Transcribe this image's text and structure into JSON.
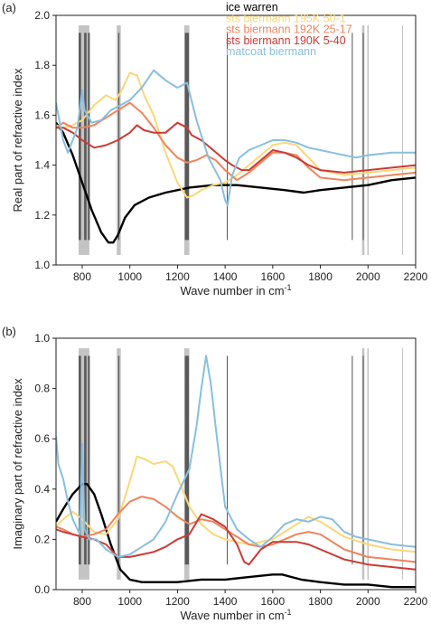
{
  "chart_data": [
    {
      "type": "line",
      "panel_label": "(a)",
      "xlabel": "Wave number in cm",
      "xlabel_sup": "-1",
      "ylabel": "Real part of refractive index",
      "xlim": [
        690,
        2200
      ],
      "ylim": [
        1.0,
        2.0
      ],
      "xticks": [
        800,
        1000,
        1200,
        1400,
        1600,
        1800,
        2000,
        2200
      ],
      "yticks": [
        1.0,
        1.2,
        1.4,
        1.6,
        1.8,
        2.0
      ],
      "ytick_labels": [
        "1.0",
        "1.2",
        "1.4",
        "1.6",
        "1.8",
        "2.0"
      ],
      "legend_position": "top-right",
      "series": [
        {
          "name": "ice warren",
          "color": "#000000",
          "x": [
            690,
            720,
            760,
            800,
            840,
            880,
            910,
            930,
            950,
            980,
            1020,
            1080,
            1150,
            1250,
            1350,
            1450,
            1550,
            1650,
            1730,
            1800,
            1900,
            2000,
            2100,
            2200
          ],
          "y": [
            1.57,
            1.53,
            1.44,
            1.33,
            1.22,
            1.13,
            1.09,
            1.09,
            1.12,
            1.19,
            1.24,
            1.27,
            1.29,
            1.31,
            1.32,
            1.32,
            1.31,
            1.3,
            1.29,
            1.3,
            1.31,
            1.32,
            1.34,
            1.35
          ]
        },
        {
          "name": "sts biermann 195K 50-1",
          "color": "#fbd77a",
          "x": [
            690,
            720,
            760,
            800,
            850,
            900,
            940,
            960,
            1000,
            1030,
            1060,
            1100,
            1150,
            1200,
            1240,
            1270,
            1300,
            1350,
            1400,
            1450,
            1500,
            1550,
            1600,
            1650,
            1700,
            1750,
            1800,
            1900,
            2000,
            2100,
            2200
          ],
          "y": [
            1.56,
            1.55,
            1.56,
            1.58,
            1.64,
            1.68,
            1.66,
            1.69,
            1.77,
            1.76,
            1.68,
            1.6,
            1.45,
            1.33,
            1.27,
            1.28,
            1.3,
            1.32,
            1.33,
            1.36,
            1.4,
            1.44,
            1.48,
            1.49,
            1.48,
            1.43,
            1.38,
            1.36,
            1.37,
            1.38,
            1.39
          ]
        },
        {
          "name": "sts biermann 192K 25-17",
          "color": "#f0845c",
          "x": [
            690,
            720,
            760,
            800,
            850,
            900,
            950,
            1000,
            1050,
            1100,
            1150,
            1200,
            1240,
            1280,
            1320,
            1360,
            1400,
            1450,
            1500,
            1550,
            1600,
            1650,
            1700,
            1750,
            1800,
            1900,
            2000,
            2100,
            2200
          ],
          "y": [
            1.55,
            1.57,
            1.55,
            1.55,
            1.56,
            1.59,
            1.62,
            1.65,
            1.61,
            1.55,
            1.48,
            1.43,
            1.41,
            1.42,
            1.44,
            1.42,
            1.38,
            1.34,
            1.37,
            1.41,
            1.45,
            1.45,
            1.44,
            1.39,
            1.35,
            1.34,
            1.35,
            1.36,
            1.37
          ]
        },
        {
          "name": "sts biermann 190K 5-40",
          "color": "#cc3a34",
          "x": [
            690,
            720,
            760,
            800,
            850,
            900,
            950,
            1000,
            1030,
            1060,
            1100,
            1150,
            1200,
            1240,
            1260,
            1300,
            1350,
            1400,
            1430,
            1470,
            1500,
            1550,
            1600,
            1650,
            1700,
            1750,
            1800,
            1900,
            2000,
            2100,
            2200
          ],
          "y": [
            1.55,
            1.55,
            1.53,
            1.5,
            1.47,
            1.48,
            1.5,
            1.53,
            1.56,
            1.54,
            1.53,
            1.53,
            1.57,
            1.55,
            1.52,
            1.5,
            1.46,
            1.42,
            1.4,
            1.38,
            1.38,
            1.42,
            1.46,
            1.45,
            1.43,
            1.4,
            1.38,
            1.37,
            1.38,
            1.39,
            1.4
          ]
        },
        {
          "name": "matcoat biermann",
          "color": "#88bfdf",
          "x": [
            690,
            700,
            720,
            740,
            760,
            780,
            800,
            810,
            840,
            880,
            920,
            960,
            1000,
            1050,
            1100,
            1150,
            1200,
            1240,
            1280,
            1330,
            1380,
            1400,
            1410,
            1430,
            1460,
            1500,
            1550,
            1600,
            1650,
            1700,
            1750,
            1800,
            1850,
            1900,
            1950,
            2000,
            2100,
            2200
          ],
          "y": [
            1.65,
            1.6,
            1.5,
            1.45,
            1.5,
            1.55,
            1.7,
            1.62,
            1.57,
            1.58,
            1.62,
            1.64,
            1.66,
            1.71,
            1.78,
            1.74,
            1.71,
            1.73,
            1.58,
            1.43,
            1.34,
            1.26,
            1.24,
            1.36,
            1.43,
            1.46,
            1.48,
            1.5,
            1.5,
            1.49,
            1.47,
            1.46,
            1.45,
            1.44,
            1.43,
            1.44,
            1.45,
            1.45
          ]
        }
      ],
      "bands": [
        {
          "x0": 785,
          "x1": 830,
          "color": "#c4c4c4"
        },
        {
          "x0": 785,
          "x1": 795,
          "color": "#595959"
        },
        {
          "x0": 808,
          "x1": 818,
          "color": "#595959"
        },
        {
          "x0": 824,
          "x1": 832,
          "color": "#595959"
        },
        {
          "x0": 945,
          "x1": 962,
          "color": "#c4c4c4"
        },
        {
          "x0": 951,
          "x1": 956,
          "color": "#595959"
        },
        {
          "x0": 1228,
          "x1": 1250,
          "color": "#c4c4c4"
        },
        {
          "x0": 1231,
          "x1": 1248,
          "color": "#595959"
        },
        {
          "x0": 1407,
          "x1": 1411,
          "color": "#595959"
        },
        {
          "x0": 1932,
          "x1": 1936,
          "color": "#595959"
        },
        {
          "x0": 1975,
          "x1": 1985,
          "color": "#c4c4c4"
        },
        {
          "x0": 1978,
          "x1": 1982,
          "color": "#595959"
        },
        {
          "x0": 1997,
          "x1": 2003,
          "color": "#c4c4c4"
        },
        {
          "x0": 2143,
          "x1": 2147,
          "color": "#c4c4c4"
        }
      ]
    },
    {
      "type": "line",
      "panel_label": "(b)",
      "xlabel": "Wave number in cm",
      "xlabel_sup": "-1",
      "ylabel": "Imaginary part of refractive index",
      "xlim": [
        690,
        2200
      ],
      "ylim": [
        0.0,
        1.0
      ],
      "xticks": [
        800,
        1000,
        1200,
        1400,
        1600,
        1800,
        2000,
        2200
      ],
      "yticks": [
        0.0,
        0.2,
        0.4,
        0.6,
        0.8,
        1.0
      ],
      "ytick_labels": [
        "0.0",
        "0.2",
        "0.4",
        "0.6",
        "0.8",
        "1.0"
      ],
      "series": [
        {
          "name": "ice warren",
          "color": "#000000",
          "x": [
            690,
            720,
            760,
            800,
            820,
            850,
            880,
            920,
            960,
            1000,
            1050,
            1100,
            1200,
            1300,
            1400,
            1500,
            1600,
            1640,
            1680,
            1720,
            1800,
            1900,
            2000,
            2100,
            2200
          ],
          "y": [
            0.27,
            0.32,
            0.38,
            0.42,
            0.42,
            0.38,
            0.3,
            0.18,
            0.08,
            0.04,
            0.03,
            0.03,
            0.03,
            0.04,
            0.04,
            0.05,
            0.06,
            0.06,
            0.05,
            0.04,
            0.03,
            0.02,
            0.02,
            0.01,
            0.01
          ]
        },
        {
          "name": "sts biermann 195K 50-1",
          "color": "#fbd77a",
          "x": [
            690,
            720,
            760,
            800,
            850,
            900,
            950,
            990,
            1030,
            1060,
            1100,
            1150,
            1180,
            1220,
            1250,
            1300,
            1350,
            1400,
            1450,
            1500,
            1550,
            1600,
            1650,
            1700,
            1750,
            1800,
            1900,
            2000,
            2100,
            2200
          ],
          "y": [
            0.25,
            0.28,
            0.31,
            0.28,
            0.23,
            0.22,
            0.28,
            0.4,
            0.53,
            0.52,
            0.5,
            0.51,
            0.49,
            0.4,
            0.33,
            0.26,
            0.22,
            0.2,
            0.19,
            0.18,
            0.19,
            0.2,
            0.23,
            0.26,
            0.29,
            0.27,
            0.21,
            0.18,
            0.16,
            0.15
          ]
        },
        {
          "name": "sts biermann 192K 25-17",
          "color": "#f0845c",
          "x": [
            690,
            720,
            760,
            800,
            850,
            900,
            950,
            1000,
            1050,
            1100,
            1150,
            1200,
            1250,
            1300,
            1350,
            1400,
            1450,
            1500,
            1550,
            1600,
            1650,
            1700,
            1750,
            1800,
            1900,
            2000,
            2100,
            2200
          ],
          "y": [
            0.25,
            0.24,
            0.22,
            0.21,
            0.22,
            0.24,
            0.3,
            0.35,
            0.37,
            0.36,
            0.33,
            0.29,
            0.26,
            0.28,
            0.27,
            0.24,
            0.21,
            0.18,
            0.17,
            0.18,
            0.2,
            0.22,
            0.23,
            0.22,
            0.16,
            0.13,
            0.12,
            0.11
          ]
        },
        {
          "name": "sts biermann 190K 5-40",
          "color": "#cc3a34",
          "x": [
            690,
            720,
            760,
            800,
            850,
            900,
            950,
            1000,
            1050,
            1100,
            1150,
            1200,
            1250,
            1300,
            1350,
            1400,
            1450,
            1480,
            1500,
            1550,
            1600,
            1650,
            1700,
            1750,
            1800,
            1900,
            2000,
            2100,
            2200
          ],
          "y": [
            0.24,
            0.23,
            0.22,
            0.21,
            0.2,
            0.18,
            0.13,
            0.13,
            0.14,
            0.15,
            0.17,
            0.2,
            0.22,
            0.3,
            0.28,
            0.25,
            0.18,
            0.11,
            0.1,
            0.16,
            0.19,
            0.19,
            0.19,
            0.18,
            0.16,
            0.12,
            0.1,
            0.09,
            0.08
          ]
        },
        {
          "name": "matcoat biermann",
          "color": "#88bfdf",
          "x": [
            690,
            700,
            720,
            740,
            760,
            790,
            800,
            810,
            830,
            860,
            900,
            950,
            1000,
            1050,
            1100,
            1150,
            1200,
            1250,
            1280,
            1300,
            1320,
            1340,
            1360,
            1400,
            1450,
            1500,
            1550,
            1600,
            1650,
            1700,
            1750,
            1800,
            1850,
            1900,
            1950,
            2000,
            2100,
            2200
          ],
          "y": [
            0.61,
            0.5,
            0.44,
            0.35,
            0.28,
            0.22,
            0.58,
            0.24,
            0.2,
            0.2,
            0.16,
            0.13,
            0.14,
            0.17,
            0.2,
            0.27,
            0.38,
            0.48,
            0.65,
            0.8,
            0.93,
            0.82,
            0.65,
            0.33,
            0.24,
            0.2,
            0.17,
            0.21,
            0.26,
            0.28,
            0.27,
            0.29,
            0.28,
            0.23,
            0.21,
            0.2,
            0.18,
            0.17
          ]
        }
      ],
      "bands": [
        {
          "x0": 785,
          "x1": 830,
          "color": "#c4c4c4"
        },
        {
          "x0": 785,
          "x1": 795,
          "color": "#595959"
        },
        {
          "x0": 808,
          "x1": 818,
          "color": "#595959"
        },
        {
          "x0": 824,
          "x1": 832,
          "color": "#595959"
        },
        {
          "x0": 945,
          "x1": 962,
          "color": "#c4c4c4"
        },
        {
          "x0": 951,
          "x1": 956,
          "color": "#595959"
        },
        {
          "x0": 1228,
          "x1": 1250,
          "color": "#c4c4c4"
        },
        {
          "x0": 1231,
          "x1": 1248,
          "color": "#595959"
        },
        {
          "x0": 1407,
          "x1": 1411,
          "color": "#595959"
        },
        {
          "x0": 1932,
          "x1": 1936,
          "color": "#595959"
        },
        {
          "x0": 1975,
          "x1": 1985,
          "color": "#c4c4c4"
        },
        {
          "x0": 1978,
          "x1": 1982,
          "color": "#595959"
        },
        {
          "x0": 1997,
          "x1": 2003,
          "color": "#c4c4c4"
        },
        {
          "x0": 2143,
          "x1": 2147,
          "color": "#c4c4c4"
        }
      ]
    }
  ]
}
